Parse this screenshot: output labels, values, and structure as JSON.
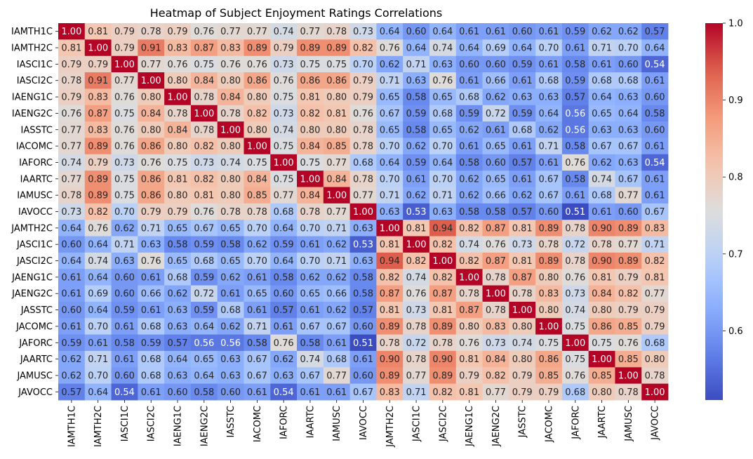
{
  "chart_data": {
    "type": "heatmap",
    "title": "Heatmap of Subject Enjoyment Ratings Correlations",
    "labels": [
      "IAMTH1C",
      "IAMTH2C",
      "IASCI1C",
      "IASCI2C",
      "IAENG1C",
      "IAENG2C",
      "IASSTC",
      "IACOMC",
      "IAFORC",
      "IAARTC",
      "IAMUSC",
      "IAVOCC",
      "JAMTH2C",
      "JASCI1C",
      "JASCI2C",
      "JAENG1C",
      "JAENG2C",
      "JASSTC",
      "JACOMC",
      "JAFORC",
      "JAARTC",
      "JAMUSC",
      "JAVOCC"
    ],
    "matrix": [
      [
        1.0,
        0.81,
        0.79,
        0.78,
        0.79,
        0.76,
        0.77,
        0.77,
        0.74,
        0.77,
        0.78,
        0.73,
        0.64,
        0.6,
        0.64,
        0.61,
        0.61,
        0.6,
        0.61,
        0.59,
        0.62,
        0.62,
        0.57
      ],
      [
        0.81,
        1.0,
        0.79,
        0.91,
        0.83,
        0.87,
        0.83,
        0.89,
        0.79,
        0.89,
        0.89,
        0.82,
        0.76,
        0.64,
        0.74,
        0.64,
        0.69,
        0.64,
        0.7,
        0.61,
        0.71,
        0.7,
        0.64
      ],
      [
        0.79,
        0.79,
        1.0,
        0.77,
        0.76,
        0.75,
        0.76,
        0.76,
        0.73,
        0.75,
        0.75,
        0.7,
        0.62,
        0.71,
        0.63,
        0.6,
        0.6,
        0.59,
        0.61,
        0.58,
        0.61,
        0.6,
        0.54
      ],
      [
        0.78,
        0.91,
        0.77,
        1.0,
        0.8,
        0.84,
        0.8,
        0.86,
        0.76,
        0.86,
        0.86,
        0.79,
        0.71,
        0.63,
        0.76,
        0.61,
        0.66,
        0.61,
        0.68,
        0.59,
        0.68,
        0.68,
        0.61
      ],
      [
        0.79,
        0.83,
        0.76,
        0.8,
        1.0,
        0.78,
        0.84,
        0.8,
        0.75,
        0.81,
        0.8,
        0.79,
        0.65,
        0.58,
        0.65,
        0.68,
        0.62,
        0.63,
        0.63,
        0.57,
        0.64,
        0.63,
        0.6
      ],
      [
        0.76,
        0.87,
        0.75,
        0.84,
        0.78,
        1.0,
        0.78,
        0.82,
        0.73,
        0.82,
        0.81,
        0.76,
        0.67,
        0.59,
        0.68,
        0.59,
        0.72,
        0.59,
        0.64,
        0.56,
        0.65,
        0.64,
        0.58
      ],
      [
        0.77,
        0.83,
        0.76,
        0.8,
        0.84,
        0.78,
        1.0,
        0.8,
        0.74,
        0.8,
        0.8,
        0.78,
        0.65,
        0.58,
        0.65,
        0.62,
        0.61,
        0.68,
        0.62,
        0.56,
        0.63,
        0.63,
        0.6
      ],
      [
        0.77,
        0.89,
        0.76,
        0.86,
        0.8,
        0.82,
        0.8,
        1.0,
        0.75,
        0.84,
        0.85,
        0.78,
        0.7,
        0.62,
        0.7,
        0.61,
        0.65,
        0.61,
        0.71,
        0.58,
        0.67,
        0.67,
        0.61
      ],
      [
        0.74,
        0.79,
        0.73,
        0.76,
        0.75,
        0.73,
        0.74,
        0.75,
        1.0,
        0.75,
        0.77,
        0.68,
        0.64,
        0.59,
        0.64,
        0.58,
        0.6,
        0.57,
        0.61,
        0.76,
        0.62,
        0.63,
        0.54
      ],
      [
        0.77,
        0.89,
        0.75,
        0.86,
        0.81,
        0.82,
        0.8,
        0.84,
        0.75,
        1.0,
        0.84,
        0.78,
        0.7,
        0.61,
        0.7,
        0.62,
        0.65,
        0.61,
        0.67,
        0.58,
        0.74,
        0.67,
        0.61
      ],
      [
        0.78,
        0.89,
        0.75,
        0.86,
        0.8,
        0.81,
        0.8,
        0.85,
        0.77,
        0.84,
        1.0,
        0.77,
        0.71,
        0.62,
        0.71,
        0.62,
        0.66,
        0.62,
        0.67,
        0.61,
        0.68,
        0.77,
        0.61
      ],
      [
        0.73,
        0.82,
        0.7,
        0.79,
        0.79,
        0.76,
        0.78,
        0.78,
        0.68,
        0.78,
        0.77,
        1.0,
        0.63,
        0.53,
        0.63,
        0.58,
        0.58,
        0.57,
        0.6,
        0.51,
        0.61,
        0.6,
        0.67
      ],
      [
        0.64,
        0.76,
        0.62,
        0.71,
        0.65,
        0.67,
        0.65,
        0.7,
        0.64,
        0.7,
        0.71,
        0.63,
        1.0,
        0.81,
        0.94,
        0.82,
        0.87,
        0.81,
        0.89,
        0.78,
        0.9,
        0.89,
        0.83
      ],
      [
        0.6,
        0.64,
        0.71,
        0.63,
        0.58,
        0.59,
        0.58,
        0.62,
        0.59,
        0.61,
        0.62,
        0.53,
        0.81,
        1.0,
        0.82,
        0.74,
        0.76,
        0.73,
        0.78,
        0.72,
        0.78,
        0.77,
        0.71
      ],
      [
        0.64,
        0.74,
        0.63,
        0.76,
        0.65,
        0.68,
        0.65,
        0.7,
        0.64,
        0.7,
        0.71,
        0.63,
        0.94,
        0.82,
        1.0,
        0.82,
        0.87,
        0.81,
        0.89,
        0.78,
        0.9,
        0.89,
        0.82
      ],
      [
        0.61,
        0.64,
        0.6,
        0.61,
        0.68,
        0.59,
        0.62,
        0.61,
        0.58,
        0.62,
        0.62,
        0.58,
        0.82,
        0.74,
        0.82,
        1.0,
        0.78,
        0.87,
        0.8,
        0.76,
        0.81,
        0.79,
        0.81
      ],
      [
        0.61,
        0.69,
        0.6,
        0.66,
        0.62,
        0.72,
        0.61,
        0.65,
        0.6,
        0.65,
        0.66,
        0.58,
        0.87,
        0.76,
        0.87,
        0.78,
        1.0,
        0.78,
        0.83,
        0.73,
        0.84,
        0.82,
        0.77
      ],
      [
        0.6,
        0.64,
        0.59,
        0.61,
        0.63,
        0.59,
        0.68,
        0.61,
        0.57,
        0.61,
        0.62,
        0.57,
        0.81,
        0.73,
        0.81,
        0.87,
        0.78,
        1.0,
        0.8,
        0.74,
        0.8,
        0.79,
        0.79
      ],
      [
        0.61,
        0.7,
        0.61,
        0.68,
        0.63,
        0.64,
        0.62,
        0.71,
        0.61,
        0.67,
        0.67,
        0.6,
        0.89,
        0.78,
        0.89,
        0.8,
        0.83,
        0.8,
        1.0,
        0.75,
        0.86,
        0.85,
        0.79
      ],
      [
        0.59,
        0.61,
        0.58,
        0.59,
        0.57,
        0.56,
        0.56,
        0.58,
        0.76,
        0.58,
        0.61,
        0.51,
        0.78,
        0.72,
        0.78,
        0.76,
        0.73,
        0.74,
        0.75,
        1.0,
        0.75,
        0.76,
        0.68
      ],
      [
        0.62,
        0.71,
        0.61,
        0.68,
        0.64,
        0.65,
        0.63,
        0.67,
        0.62,
        0.74,
        0.68,
        0.61,
        0.9,
        0.78,
        0.9,
        0.81,
        0.84,
        0.8,
        0.86,
        0.75,
        1.0,
        0.85,
        0.8
      ],
      [
        0.62,
        0.7,
        0.6,
        0.68,
        0.63,
        0.64,
        0.63,
        0.67,
        0.63,
        0.67,
        0.77,
        0.6,
        0.89,
        0.77,
        0.89,
        0.79,
        0.82,
        0.79,
        0.85,
        0.76,
        0.85,
        1.0,
        0.78
      ],
      [
        0.57,
        0.64,
        0.54,
        0.61,
        0.6,
        0.58,
        0.6,
        0.61,
        0.54,
        0.61,
        0.61,
        0.67,
        0.83,
        0.71,
        0.82,
        0.81,
        0.77,
        0.79,
        0.79,
        0.68,
        0.8,
        0.78,
        1.0
      ]
    ],
    "vmin": 0.51,
    "vmax": 1.0,
    "colormap": "coolwarm",
    "colorbar_ticks": [
      "0.6",
      "0.7",
      "0.8",
      "0.9",
      "1.0"
    ],
    "annotate": true,
    "value_format": "2 decimals"
  }
}
